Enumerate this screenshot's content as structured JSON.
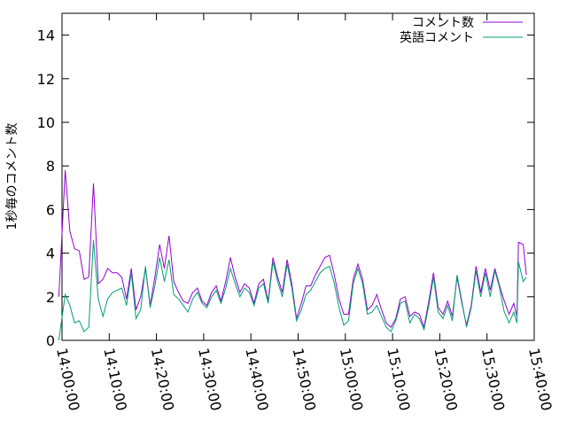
{
  "chart_data": {
    "type": "line",
    "ylabel": "1秒毎のコメント数",
    "xlabel": "",
    "title": "",
    "ylim": [
      0,
      15
    ],
    "xlim": [
      "14:00:00",
      "15:40:00"
    ],
    "yticks": [
      0,
      2,
      4,
      6,
      8,
      10,
      12,
      14
    ],
    "xticks": [
      "14:00:00",
      "14:10:00",
      "14:20:00",
      "14:30:00",
      "14:40:00",
      "14:50:00",
      "15:00:00",
      "15:10:00",
      "15:20:00",
      "15:30:00",
      "15:40:00"
    ],
    "grid": false,
    "legend_position": "top-right",
    "series": [
      {
        "name": "コメント数",
        "color": "#9400d3",
        "points": [
          [
            "13:59:20",
            2.0
          ],
          [
            "14:00:40",
            7.8
          ],
          [
            "14:01:40",
            5.0
          ],
          [
            "14:02:40",
            4.2
          ],
          [
            "14:03:40",
            4.1
          ],
          [
            "14:04:40",
            2.8
          ],
          [
            "14:05:40",
            2.9
          ],
          [
            "14:06:40",
            7.2
          ],
          [
            "14:07:40",
            2.6
          ],
          [
            "14:08:40",
            2.8
          ],
          [
            "14:09:40",
            3.3
          ],
          [
            "14:10:40",
            3.1
          ],
          [
            "14:11:40",
            3.1
          ],
          [
            "14:12:40",
            2.9
          ],
          [
            "14:13:40",
            1.9
          ],
          [
            "14:14:40",
            3.3
          ],
          [
            "14:15:40",
            1.4
          ],
          [
            "14:16:40",
            2.0
          ],
          [
            "14:17:40",
            3.3
          ],
          [
            "14:18:40",
            1.6
          ],
          [
            "14:19:40",
            2.9
          ],
          [
            "14:20:40",
            4.4
          ],
          [
            "14:21:40",
            3.3
          ],
          [
            "14:22:40",
            4.8
          ],
          [
            "14:23:40",
            2.7
          ],
          [
            "14:24:40",
            2.2
          ],
          [
            "14:25:40",
            1.8
          ],
          [
            "14:26:40",
            1.7
          ],
          [
            "14:27:40",
            2.2
          ],
          [
            "14:28:40",
            2.4
          ],
          [
            "14:29:40",
            1.8
          ],
          [
            "14:30:40",
            1.6
          ],
          [
            "14:31:40",
            2.2
          ],
          [
            "14:32:40",
            2.5
          ],
          [
            "14:33:40",
            1.8
          ],
          [
            "14:34:40",
            2.7
          ],
          [
            "14:35:40",
            3.8
          ],
          [
            "14:36:40",
            2.9
          ],
          [
            "14:37:40",
            2.2
          ],
          [
            "14:38:40",
            2.6
          ],
          [
            "14:39:40",
            2.4
          ],
          [
            "14:40:40",
            1.7
          ],
          [
            "14:41:40",
            2.6
          ],
          [
            "14:42:40",
            2.8
          ],
          [
            "14:43:40",
            1.8
          ],
          [
            "14:44:40",
            3.8
          ],
          [
            "14:45:40",
            2.9
          ],
          [
            "14:46:40",
            2.2
          ],
          [
            "14:47:40",
            3.7
          ],
          [
            "14:48:40",
            2.6
          ],
          [
            "14:49:40",
            1.0
          ],
          [
            "14:50:40",
            1.7
          ],
          [
            "14:51:40",
            2.5
          ],
          [
            "14:52:40",
            2.5
          ],
          [
            "14:53:40",
            3.0
          ],
          [
            "14:54:40",
            3.4
          ],
          [
            "14:55:40",
            3.8
          ],
          [
            "14:56:40",
            3.9
          ],
          [
            "14:57:40",
            3.0
          ],
          [
            "14:58:40",
            1.9
          ],
          [
            "14:59:40",
            1.2
          ],
          [
            "15:00:40",
            1.2
          ],
          [
            "15:01:40",
            2.8
          ],
          [
            "15:02:40",
            3.5
          ],
          [
            "15:03:40",
            2.8
          ],
          [
            "15:04:40",
            1.4
          ],
          [
            "15:05:40",
            1.6
          ],
          [
            "15:06:40",
            2.1
          ],
          [
            "15:07:40",
            1.4
          ],
          [
            "15:08:40",
            0.8
          ],
          [
            "15:09:40",
            0.6
          ],
          [
            "15:10:40",
            1.0
          ],
          [
            "15:11:40",
            1.9
          ],
          [
            "15:12:40",
            2.0
          ],
          [
            "15:13:40",
            1.1
          ],
          [
            "15:14:40",
            1.3
          ],
          [
            "15:15:40",
            1.2
          ],
          [
            "15:16:40",
            0.6
          ],
          [
            "15:17:40",
            1.8
          ],
          [
            "15:18:40",
            3.1
          ],
          [
            "15:19:40",
            1.5
          ],
          [
            "15:20:40",
            1.2
          ],
          [
            "15:21:40",
            1.8
          ],
          [
            "15:22:40",
            1.1
          ],
          [
            "15:23:40",
            2.9
          ],
          [
            "15:24:40",
            1.7
          ],
          [
            "15:25:40",
            0.7
          ],
          [
            "15:26:40",
            1.6
          ],
          [
            "15:27:40",
            3.4
          ],
          [
            "15:28:40",
            2.2
          ],
          [
            "15:29:40",
            3.3
          ],
          [
            "15:30:40",
            2.3
          ],
          [
            "15:31:40",
            3.3
          ],
          [
            "15:32:40",
            2.5
          ],
          [
            "15:33:40",
            1.8
          ],
          [
            "15:34:40",
            1.2
          ],
          [
            "15:35:40",
            1.7
          ],
          [
            "15:36:20",
            1.1
          ],
          [
            "15:36:40",
            4.5
          ],
          [
            "15:37:40",
            4.4
          ],
          [
            "15:38:20",
            3.0
          ]
        ]
      },
      {
        "name": "英語コメント",
        "color": "#009e73",
        "points": [
          [
            "13:59:20",
            0.0
          ],
          [
            "14:00:40",
            2.1
          ],
          [
            "14:01:40",
            1.6
          ],
          [
            "14:02:40",
            0.8
          ],
          [
            "14:03:40",
            0.9
          ],
          [
            "14:04:40",
            0.4
          ],
          [
            "14:05:40",
            0.6
          ],
          [
            "14:06:40",
            4.6
          ],
          [
            "14:07:40",
            1.9
          ],
          [
            "14:08:40",
            1.1
          ],
          [
            "14:09:40",
            1.9
          ],
          [
            "14:10:40",
            2.2
          ],
          [
            "14:11:40",
            2.3
          ],
          [
            "14:12:40",
            2.4
          ],
          [
            "14:13:40",
            1.6
          ],
          [
            "14:14:40",
            3.1
          ],
          [
            "14:15:40",
            1.0
          ],
          [
            "14:16:40",
            1.4
          ],
          [
            "14:17:40",
            3.4
          ],
          [
            "14:18:40",
            1.5
          ],
          [
            "14:19:40",
            2.5
          ],
          [
            "14:20:40",
            3.8
          ],
          [
            "14:21:40",
            2.7
          ],
          [
            "14:22:40",
            3.7
          ],
          [
            "14:23:40",
            2.1
          ],
          [
            "14:24:40",
            1.9
          ],
          [
            "14:25:40",
            1.6
          ],
          [
            "14:26:40",
            1.3
          ],
          [
            "14:27:40",
            1.9
          ],
          [
            "14:28:40",
            2.2
          ],
          [
            "14:29:40",
            1.7
          ],
          [
            "14:30:40",
            1.5
          ],
          [
            "14:31:40",
            2.0
          ],
          [
            "14:32:40",
            2.3
          ],
          [
            "14:33:40",
            1.7
          ],
          [
            "14:34:40",
            2.4
          ],
          [
            "14:35:40",
            3.3
          ],
          [
            "14:36:40",
            2.6
          ],
          [
            "14:37:40",
            2.0
          ],
          [
            "14:38:40",
            2.4
          ],
          [
            "14:39:40",
            2.2
          ],
          [
            "14:40:40",
            1.6
          ],
          [
            "14:41:40",
            2.4
          ],
          [
            "14:42:40",
            2.6
          ],
          [
            "14:43:40",
            1.7
          ],
          [
            "14:44:40",
            3.6
          ],
          [
            "14:45:40",
            2.7
          ],
          [
            "14:46:40",
            2.0
          ],
          [
            "14:47:40",
            3.5
          ],
          [
            "14:48:40",
            2.4
          ],
          [
            "14:49:40",
            0.9
          ],
          [
            "14:50:40",
            1.4
          ],
          [
            "14:51:40",
            2.1
          ],
          [
            "14:52:40",
            2.3
          ],
          [
            "14:53:40",
            2.7
          ],
          [
            "14:54:40",
            3.1
          ],
          [
            "14:55:40",
            3.3
          ],
          [
            "14:56:40",
            3.4
          ],
          [
            "14:57:40",
            2.6
          ],
          [
            "14:58:40",
            1.5
          ],
          [
            "14:59:40",
            0.7
          ],
          [
            "15:00:40",
            0.9
          ],
          [
            "15:01:40",
            2.6
          ],
          [
            "15:02:40",
            3.3
          ],
          [
            "15:03:40",
            2.6
          ],
          [
            "15:04:40",
            1.2
          ],
          [
            "15:05:40",
            1.3
          ],
          [
            "15:06:40",
            1.6
          ],
          [
            "15:07:40",
            1.1
          ],
          [
            "15:08:40",
            0.6
          ],
          [
            "15:09:40",
            0.4
          ],
          [
            "15:10:40",
            0.9
          ],
          [
            "15:11:40",
            1.7
          ],
          [
            "15:12:40",
            1.8
          ],
          [
            "15:13:40",
            0.8
          ],
          [
            "15:14:40",
            1.2
          ],
          [
            "15:15:40",
            1.0
          ],
          [
            "15:16:40",
            0.5
          ],
          [
            "15:17:40",
            1.6
          ],
          [
            "15:18:40",
            2.9
          ],
          [
            "15:19:40",
            1.3
          ],
          [
            "15:20:40",
            1.0
          ],
          [
            "15:21:40",
            1.6
          ],
          [
            "15:22:40",
            0.9
          ],
          [
            "15:23:40",
            3.0
          ],
          [
            "15:24:40",
            1.8
          ],
          [
            "15:25:40",
            0.6
          ],
          [
            "15:26:40",
            1.5
          ],
          [
            "15:27:40",
            3.2
          ],
          [
            "15:28:40",
            2.0
          ],
          [
            "15:29:40",
            3.1
          ],
          [
            "15:30:40",
            2.0
          ],
          [
            "15:31:40",
            3.2
          ],
          [
            "15:32:40",
            2.4
          ],
          [
            "15:33:40",
            1.3
          ],
          [
            "15:34:40",
            0.8
          ],
          [
            "15:35:40",
            1.3
          ],
          [
            "15:36:20",
            0.8
          ],
          [
            "15:36:40",
            3.6
          ],
          [
            "15:37:40",
            2.7
          ],
          [
            "15:38:20",
            2.9
          ]
        ]
      }
    ]
  }
}
